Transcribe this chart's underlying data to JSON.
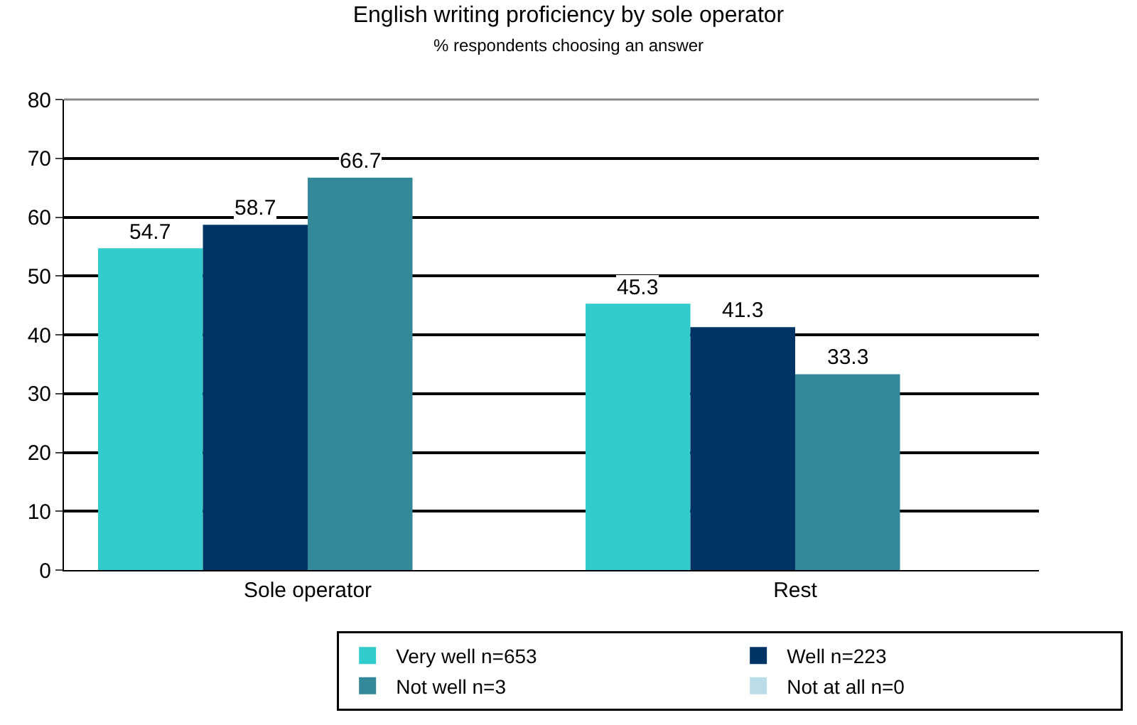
{
  "chart_data": {
    "type": "bar",
    "title": "English writing proficiency by sole operator",
    "subtitle": "% respondents choosing an answer",
    "categories": [
      "Sole operator",
      "Rest"
    ],
    "series": [
      {
        "name": "Very well n=653",
        "color": "#33cccc",
        "values": [
          54.7,
          45.3
        ]
      },
      {
        "name": "Well n=223",
        "color": "#003366",
        "values": [
          58.7,
          41.3
        ]
      },
      {
        "name": "Not well n=3",
        "color": "#338899",
        "values": [
          66.7,
          33.3
        ]
      },
      {
        "name": "Not at all n=0",
        "color": "#bbdde8",
        "values": [
          null,
          null
        ]
      }
    ],
    "ylim": [
      0,
      80
    ],
    "yticks": [
      0,
      10,
      20,
      30,
      40,
      50,
      60,
      70,
      80
    ],
    "grid": "y",
    "legend": "bottom",
    "data_labels": true
  }
}
